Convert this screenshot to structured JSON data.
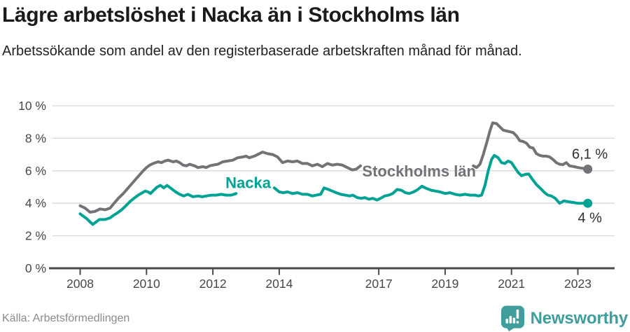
{
  "header": {
    "title": "Lägre arbetslöshet i Nacka än i Stockholms län",
    "subtitle": "Arbetssökande som andel av den registerbaserade arbetskraften månad för månad."
  },
  "footer": {
    "source": "Källa: Arbetsförmedlingen",
    "logo_text": "Newsworthy",
    "logo_icon": "bar-chart-badge-icon",
    "logo_color": "#3f9e9b"
  },
  "chart_data": {
    "type": "line",
    "title": "Lägre arbetslöshet i Nacka än i Stockholms län",
    "xlabel": "",
    "ylabel": "",
    "unit": "%",
    "xlim": [
      2008,
      2023.35
    ],
    "ylim": [
      0,
      10
    ],
    "grid": true,
    "grid_color": "#d8d8d8",
    "axis_color": "#4a4a4a",
    "x_ticks": [
      2008,
      2010,
      2012,
      2014,
      2017,
      2019,
      2021,
      2023
    ],
    "y_ticks": [
      {
        "value": 0,
        "label": "0 %"
      },
      {
        "value": 2,
        "label": "2 %"
      },
      {
        "value": 4,
        "label": "4 %"
      },
      {
        "value": 6,
        "label": "6 %"
      },
      {
        "value": 8,
        "label": "8 %"
      },
      {
        "value": 10,
        "label": "10 %"
      }
    ],
    "series": [
      {
        "id": "stockholms-lan",
        "name": "Stockholms län",
        "color": "#727277",
        "end_value": 6.1,
        "label": {
          "text": "Stockholms län",
          "x": 2016.5,
          "y": 5.65
        },
        "end_label": {
          "text": "6,1 %",
          "x": 2022.82,
          "y": 6.75
        },
        "segments": [
          [
            [
              2008.0,
              3.85
            ],
            [
              2008.15,
              3.7
            ],
            [
              2008.3,
              3.45
            ],
            [
              2008.45,
              3.5
            ],
            [
              2008.6,
              3.65
            ],
            [
              2008.75,
              3.6
            ],
            [
              2008.9,
              3.7
            ],
            [
              2009.0,
              3.95
            ],
            [
              2009.15,
              4.3
            ],
            [
              2009.3,
              4.6
            ],
            [
              2009.45,
              4.95
            ],
            [
              2009.6,
              5.3
            ],
            [
              2009.75,
              5.65
            ],
            [
              2009.9,
              6.0
            ],
            [
              2010.0,
              6.2
            ],
            [
              2010.1,
              6.35
            ],
            [
              2010.2,
              6.45
            ],
            [
              2010.35,
              6.55
            ],
            [
              2010.45,
              6.5
            ],
            [
              2010.55,
              6.6
            ],
            [
              2010.65,
              6.65
            ],
            [
              2010.8,
              6.55
            ],
            [
              2010.9,
              6.6
            ],
            [
              2011.0,
              6.5
            ],
            [
              2011.1,
              6.35
            ],
            [
              2011.2,
              6.3
            ],
            [
              2011.3,
              6.4
            ],
            [
              2011.45,
              6.3
            ],
            [
              2011.55,
              6.2
            ],
            [
              2011.7,
              6.25
            ],
            [
              2011.8,
              6.2
            ],
            [
              2011.9,
              6.3
            ],
            [
              2012.0,
              6.35
            ],
            [
              2012.15,
              6.4
            ],
            [
              2012.3,
              6.55
            ],
            [
              2012.45,
              6.6
            ],
            [
              2012.6,
              6.65
            ],
            [
              2012.75,
              6.8
            ],
            [
              2012.9,
              6.85
            ],
            [
              2013.0,
              6.9
            ],
            [
              2013.1,
              6.8
            ],
            [
              2013.25,
              6.9
            ],
            [
              2013.35,
              7.0
            ],
            [
              2013.5,
              7.15
            ],
            [
              2013.65,
              7.05
            ],
            [
              2013.8,
              7.0
            ],
            [
              2013.95,
              6.85
            ],
            [
              2014.1,
              6.5
            ],
            [
              2014.25,
              6.6
            ],
            [
              2014.4,
              6.55
            ],
            [
              2014.55,
              6.6
            ],
            [
              2014.7,
              6.45
            ],
            [
              2014.85,
              6.45
            ],
            [
              2015.0,
              6.3
            ],
            [
              2015.15,
              6.4
            ],
            [
              2015.3,
              6.25
            ],
            [
              2015.45,
              6.45
            ],
            [
              2015.6,
              6.35
            ],
            [
              2015.75,
              6.4
            ],
            [
              2015.9,
              6.35
            ],
            [
              2016.05,
              6.2
            ],
            [
              2016.2,
              6.05
            ],
            [
              2016.32,
              6.1
            ],
            [
              2016.45,
              6.3
            ]
          ],
          [
            [
              2019.85,
              6.3
            ],
            [
              2019.95,
              6.2
            ],
            [
              2020.05,
              6.4
            ],
            [
              2020.15,
              7.0
            ],
            [
              2020.25,
              7.7
            ],
            [
              2020.35,
              8.45
            ],
            [
              2020.43,
              8.95
            ],
            [
              2020.55,
              8.9
            ],
            [
              2020.65,
              8.7
            ],
            [
              2020.75,
              8.5
            ],
            [
              2020.85,
              8.45
            ],
            [
              2020.95,
              8.4
            ],
            [
              2021.05,
              8.35
            ],
            [
              2021.15,
              8.15
            ],
            [
              2021.25,
              7.85
            ],
            [
              2021.35,
              7.8
            ],
            [
              2021.45,
              7.7
            ],
            [
              2021.55,
              7.45
            ],
            [
              2021.65,
              7.4
            ],
            [
              2021.75,
              7.05
            ],
            [
              2021.85,
              6.95
            ],
            [
              2021.95,
              6.9
            ],
            [
              2022.05,
              6.9
            ],
            [
              2022.15,
              6.85
            ],
            [
              2022.25,
              6.7
            ],
            [
              2022.35,
              6.5
            ],
            [
              2022.45,
              6.4
            ],
            [
              2022.55,
              6.38
            ],
            [
              2022.65,
              6.5
            ],
            [
              2022.75,
              6.3
            ],
            [
              2022.9,
              6.25
            ],
            [
              2023.0,
              6.2
            ],
            [
              2023.15,
              6.15
            ],
            [
              2023.3,
              6.1
            ]
          ]
        ]
      },
      {
        "id": "nacka",
        "name": "Nacka",
        "color": "#00a294",
        "end_value": 4.0,
        "label": {
          "text": "Nacka",
          "x": 2012.38,
          "y": 4.93
        },
        "end_label": {
          "text": "4 %",
          "x": 2023.0,
          "y": 2.82
        },
        "segments": [
          [
            [
              2008.0,
              3.35
            ],
            [
              2008.1,
              3.2
            ],
            [
              2008.2,
              3.05
            ],
            [
              2008.3,
              2.85
            ],
            [
              2008.38,
              2.7
            ],
            [
              2008.48,
              2.85
            ],
            [
              2008.58,
              3.0
            ],
            [
              2008.75,
              3.0
            ],
            [
              2008.9,
              3.1
            ],
            [
              2009.0,
              3.25
            ],
            [
              2009.12,
              3.4
            ],
            [
              2009.25,
              3.6
            ],
            [
              2009.38,
              3.85
            ],
            [
              2009.5,
              4.1
            ],
            [
              2009.62,
              4.3
            ],
            [
              2009.75,
              4.5
            ],
            [
              2009.88,
              4.65
            ],
            [
              2009.96,
              4.75
            ],
            [
              2010.05,
              4.7
            ],
            [
              2010.12,
              4.6
            ],
            [
              2010.22,
              4.8
            ],
            [
              2010.32,
              5.0
            ],
            [
              2010.42,
              5.1
            ],
            [
              2010.52,
              4.95
            ],
            [
              2010.62,
              5.1
            ],
            [
              2010.75,
              4.9
            ],
            [
              2010.88,
              4.7
            ],
            [
              2011.0,
              4.55
            ],
            [
              2011.12,
              4.45
            ],
            [
              2011.25,
              4.55
            ],
            [
              2011.4,
              4.4
            ],
            [
              2011.55,
              4.45
            ],
            [
              2011.68,
              4.4
            ],
            [
              2011.8,
              4.45
            ],
            [
              2011.95,
              4.5
            ],
            [
              2012.1,
              4.5
            ],
            [
              2012.25,
              4.55
            ],
            [
              2012.4,
              4.5
            ],
            [
              2012.55,
              4.5
            ],
            [
              2012.7,
              4.6
            ]
          ],
          [
            [
              2013.85,
              4.95
            ],
            [
              2014.0,
              4.7
            ],
            [
              2014.12,
              4.65
            ],
            [
              2014.25,
              4.7
            ],
            [
              2014.4,
              4.6
            ],
            [
              2014.55,
              4.65
            ],
            [
              2014.7,
              4.55
            ],
            [
              2014.85,
              4.55
            ],
            [
              2015.0,
              4.45
            ],
            [
              2015.12,
              4.5
            ],
            [
              2015.25,
              4.55
            ],
            [
              2015.35,
              4.95
            ],
            [
              2015.48,
              4.85
            ],
            [
              2015.6,
              4.75
            ],
            [
              2015.72,
              4.65
            ],
            [
              2015.85,
              4.55
            ],
            [
              2016.0,
              4.5
            ],
            [
              2016.12,
              4.45
            ],
            [
              2016.22,
              4.5
            ],
            [
              2016.35,
              4.35
            ],
            [
              2016.48,
              4.3
            ],
            [
              2016.58,
              4.35
            ],
            [
              2016.7,
              4.25
            ],
            [
              2016.82,
              4.3
            ],
            [
              2016.95,
              4.2
            ],
            [
              2017.05,
              4.3
            ],
            [
              2017.18,
              4.45
            ],
            [
              2017.3,
              4.5
            ],
            [
              2017.42,
              4.6
            ],
            [
              2017.55,
              4.85
            ],
            [
              2017.68,
              4.8
            ],
            [
              2017.8,
              4.65
            ],
            [
              2017.92,
              4.6
            ],
            [
              2018.05,
              4.7
            ],
            [
              2018.18,
              4.85
            ],
            [
              2018.3,
              5.05
            ],
            [
              2018.45,
              4.9
            ],
            [
              2018.58,
              4.8
            ],
            [
              2018.72,
              4.75
            ],
            [
              2018.85,
              4.7
            ],
            [
              2019.0,
              4.6
            ],
            [
              2019.15,
              4.65
            ],
            [
              2019.3,
              4.55
            ],
            [
              2019.45,
              4.5
            ],
            [
              2019.6,
              4.55
            ],
            [
              2019.75,
              4.5
            ],
            [
              2019.9,
              4.5
            ],
            [
              2020.0,
              4.45
            ],
            [
              2020.1,
              4.5
            ],
            [
              2020.2,
              5.1
            ],
            [
              2020.3,
              6.0
            ],
            [
              2020.4,
              6.7
            ],
            [
              2020.48,
              6.95
            ],
            [
              2020.6,
              6.8
            ],
            [
              2020.7,
              6.5
            ],
            [
              2020.8,
              6.45
            ],
            [
              2020.9,
              6.6
            ],
            [
              2021.0,
              6.5
            ],
            [
              2021.1,
              6.2
            ],
            [
              2021.2,
              5.9
            ],
            [
              2021.3,
              5.7
            ],
            [
              2021.42,
              5.78
            ],
            [
              2021.52,
              5.8
            ],
            [
              2021.62,
              5.5
            ],
            [
              2021.75,
              5.15
            ],
            [
              2021.88,
              4.9
            ],
            [
              2022.0,
              4.65
            ],
            [
              2022.1,
              4.5
            ],
            [
              2022.2,
              4.45
            ],
            [
              2022.32,
              4.3
            ],
            [
              2022.45,
              4.0
            ],
            [
              2022.58,
              4.15
            ],
            [
              2022.7,
              4.1
            ],
            [
              2022.85,
              4.05
            ],
            [
              2023.0,
              4.0
            ],
            [
              2023.15,
              4.0
            ],
            [
              2023.3,
              4.0
            ]
          ]
        ]
      }
    ]
  }
}
